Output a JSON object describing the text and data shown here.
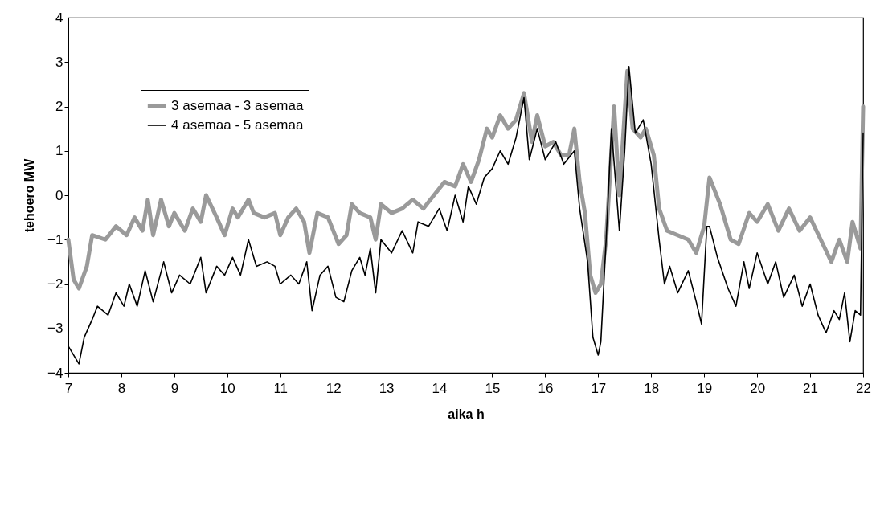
{
  "chart_data": {
    "type": "line",
    "xlabel": "aika h",
    "ylabel": "tehoero  MW",
    "x": [
      7.0,
      7.1,
      7.2,
      7.35,
      7.45,
      7.7,
      7.9,
      8.1,
      8.25,
      8.4,
      8.5,
      8.6,
      8.75,
      8.9,
      9.0,
      9.2,
      9.35,
      9.5,
      9.6,
      9.8,
      9.95,
      10.1,
      10.2,
      10.4,
      10.5,
      10.7,
      10.9,
      11.0,
      11.15,
      11.3,
      11.45,
      11.55,
      11.7,
      11.9,
      12.1,
      12.25,
      12.35,
      12.5,
      12.7,
      12.8,
      12.9,
      13.1,
      13.3,
      13.5,
      13.7,
      13.9,
      14.1,
      14.3,
      14.45,
      14.6,
      14.75,
      14.9,
      15.0,
      15.15,
      15.3,
      15.45,
      15.6,
      15.75,
      15.85,
      16.0,
      16.15,
      16.3,
      16.45,
      16.55,
      16.65,
      16.75,
      16.85,
      16.95,
      17.05,
      17.15,
      17.3,
      17.4,
      17.55,
      17.65,
      17.8,
      17.9,
      18.05,
      18.15,
      18.3,
      18.5,
      18.7,
      18.85,
      19.0,
      19.1,
      19.3,
      19.5,
      19.65,
      19.85,
      20.0,
      20.2,
      20.4,
      20.6,
      20.8,
      21.0,
      21.2,
      21.4,
      21.55,
      21.7,
      21.8,
      21.95,
      22.0
    ],
    "series": [
      {
        "name": "3 asemaa - 3 asemaa",
        "color": "#9a9a9a",
        "values": [
          -1.0,
          -1.9,
          -2.1,
          -1.6,
          -0.9,
          -1.0,
          -0.7,
          -0.9,
          -0.5,
          -0.8,
          -0.1,
          -0.9,
          -0.1,
          -0.7,
          -0.4,
          -0.8,
          -0.3,
          -0.6,
          0.0,
          -0.5,
          -0.9,
          -0.3,
          -0.5,
          -0.1,
          -0.4,
          -0.5,
          -0.4,
          -0.9,
          -0.5,
          -0.3,
          -0.6,
          -1.3,
          -0.4,
          -0.5,
          -1.1,
          -0.9,
          -0.2,
          -0.4,
          -0.5,
          -1.0,
          -0.2,
          -0.4,
          -0.3,
          -0.1,
          -0.3,
          0.0,
          0.3,
          0.2,
          0.7,
          0.3,
          0.8,
          1.5,
          1.3,
          1.8,
          1.5,
          1.7,
          2.3,
          1.2,
          1.8,
          1.1,
          1.2,
          0.9,
          0.9,
          1.5,
          0.3,
          -0.4,
          -1.8,
          -2.2,
          -2.0,
          -1.0,
          2.0,
          0.0,
          2.8,
          1.5,
          1.3,
          1.5,
          0.9,
          -0.3,
          -0.8,
          -0.9,
          -1.0,
          -1.3,
          -0.7,
          0.4,
          -0.2,
          -1.0,
          -1.1,
          -0.4,
          -0.6,
          -0.2,
          -0.8,
          -0.3,
          -0.8,
          -0.5,
          -1.0,
          -1.5,
          -1.0,
          -1.5,
          -0.6,
          -1.2,
          2.0
        ]
      },
      {
        "name": "4 asemaa - 5 asemaa",
        "color": "#000000",
        "x": [
          7.0,
          7.1,
          7.2,
          7.3,
          7.45,
          7.55,
          7.75,
          7.9,
          8.05,
          8.15,
          8.3,
          8.45,
          8.6,
          8.8,
          8.95,
          9.1,
          9.3,
          9.5,
          9.6,
          9.8,
          9.95,
          10.1,
          10.25,
          10.4,
          10.55,
          10.75,
          10.9,
          11.0,
          11.2,
          11.35,
          11.5,
          11.6,
          11.75,
          11.9,
          12.05,
          12.2,
          12.35,
          12.5,
          12.6,
          12.7,
          12.8,
          12.9,
          13.1,
          13.3,
          13.5,
          13.6,
          13.8,
          14.0,
          14.15,
          14.3,
          14.45,
          14.55,
          14.7,
          14.85,
          15.0,
          15.15,
          15.3,
          15.45,
          15.6,
          15.7,
          15.85,
          16.0,
          16.2,
          16.35,
          16.55,
          16.65,
          16.8,
          16.9,
          17.0,
          17.05,
          17.15,
          17.25,
          17.4,
          17.5,
          17.58,
          17.7,
          17.85,
          18.0,
          18.15,
          18.25,
          18.35,
          18.5,
          18.7,
          18.85,
          18.95,
          19.05,
          19.1,
          19.25,
          19.45,
          19.6,
          19.75,
          19.85,
          20.0,
          20.2,
          20.35,
          20.5,
          20.7,
          20.85,
          21.0,
          21.15,
          21.3,
          21.45,
          21.55,
          21.65,
          21.75,
          21.85,
          21.95,
          22.0
        ],
        "values": [
          -3.4,
          -3.6,
          -3.8,
          -3.2,
          -2.8,
          -2.5,
          -2.7,
          -2.2,
          -2.5,
          -2.0,
          -2.5,
          -1.7,
          -2.4,
          -1.5,
          -2.2,
          -1.8,
          -2.0,
          -1.4,
          -2.2,
          -1.6,
          -1.8,
          -1.4,
          -1.8,
          -1.0,
          -1.6,
          -1.5,
          -1.6,
          -2.0,
          -1.8,
          -2.0,
          -1.5,
          -2.6,
          -1.8,
          -1.6,
          -2.3,
          -2.4,
          -1.7,
          -1.4,
          -1.8,
          -1.2,
          -2.2,
          -1.0,
          -1.3,
          -0.8,
          -1.3,
          -0.6,
          -0.7,
          -0.3,
          -0.8,
          0.0,
          -0.6,
          0.2,
          -0.2,
          0.4,
          0.6,
          1.0,
          0.7,
          1.3,
          2.2,
          0.8,
          1.5,
          0.8,
          1.2,
          0.7,
          1.0,
          -0.3,
          -1.5,
          -3.2,
          -3.6,
          -3.3,
          -1.0,
          1.5,
          -0.8,
          1.0,
          2.9,
          1.4,
          1.7,
          0.7,
          -1.0,
          -2.0,
          -1.6,
          -2.2,
          -1.7,
          -2.4,
          -2.9,
          -0.7,
          -0.7,
          -1.4,
          -2.1,
          -2.5,
          -1.5,
          -2.1,
          -1.3,
          -2.0,
          -1.5,
          -2.3,
          -1.8,
          -2.5,
          -2.0,
          -2.7,
          -3.1,
          -2.6,
          -2.8,
          -2.2,
          -3.3,
          -2.6,
          -2.7,
          1.4
        ]
      }
    ],
    "xlim": [
      7,
      22
    ],
    "xticks": [
      7,
      8,
      9,
      10,
      11,
      12,
      13,
      14,
      15,
      16,
      17,
      18,
      19,
      20,
      21,
      22
    ],
    "ylim": [
      -4,
      4
    ],
    "yticks": [
      -4,
      -3,
      -2,
      -1,
      0,
      1,
      2,
      3,
      4
    ],
    "legend": "top left",
    "line_style": "solid"
  }
}
